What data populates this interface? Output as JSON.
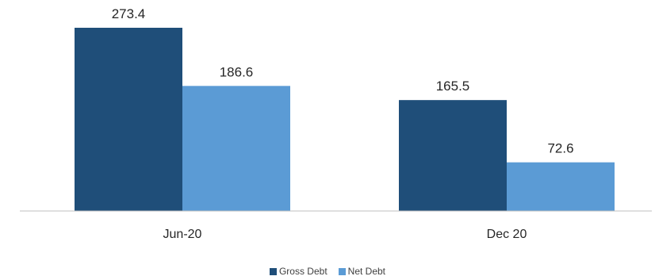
{
  "chart_data": {
    "type": "bar",
    "categories": [
      "Jun-20",
      "Dec 20"
    ],
    "series": [
      {
        "name": "Gross Debt",
        "values": [
          273.4,
          165.5
        ],
        "color": "#1f4e79"
      },
      {
        "name": "Net Debt",
        "values": [
          186.6,
          72.6
        ],
        "color": "#5b9bd5"
      }
    ],
    "value_labels": [
      [
        "273.4",
        "165.5"
      ],
      [
        "186.6",
        "72.6"
      ]
    ],
    "title": "",
    "xlabel": "",
    "ylabel": "",
    "ylim": [
      0,
      273.4
    ],
    "grid": false,
    "legend_position": "bottom-center",
    "axis_color": "#bfbfbf"
  }
}
